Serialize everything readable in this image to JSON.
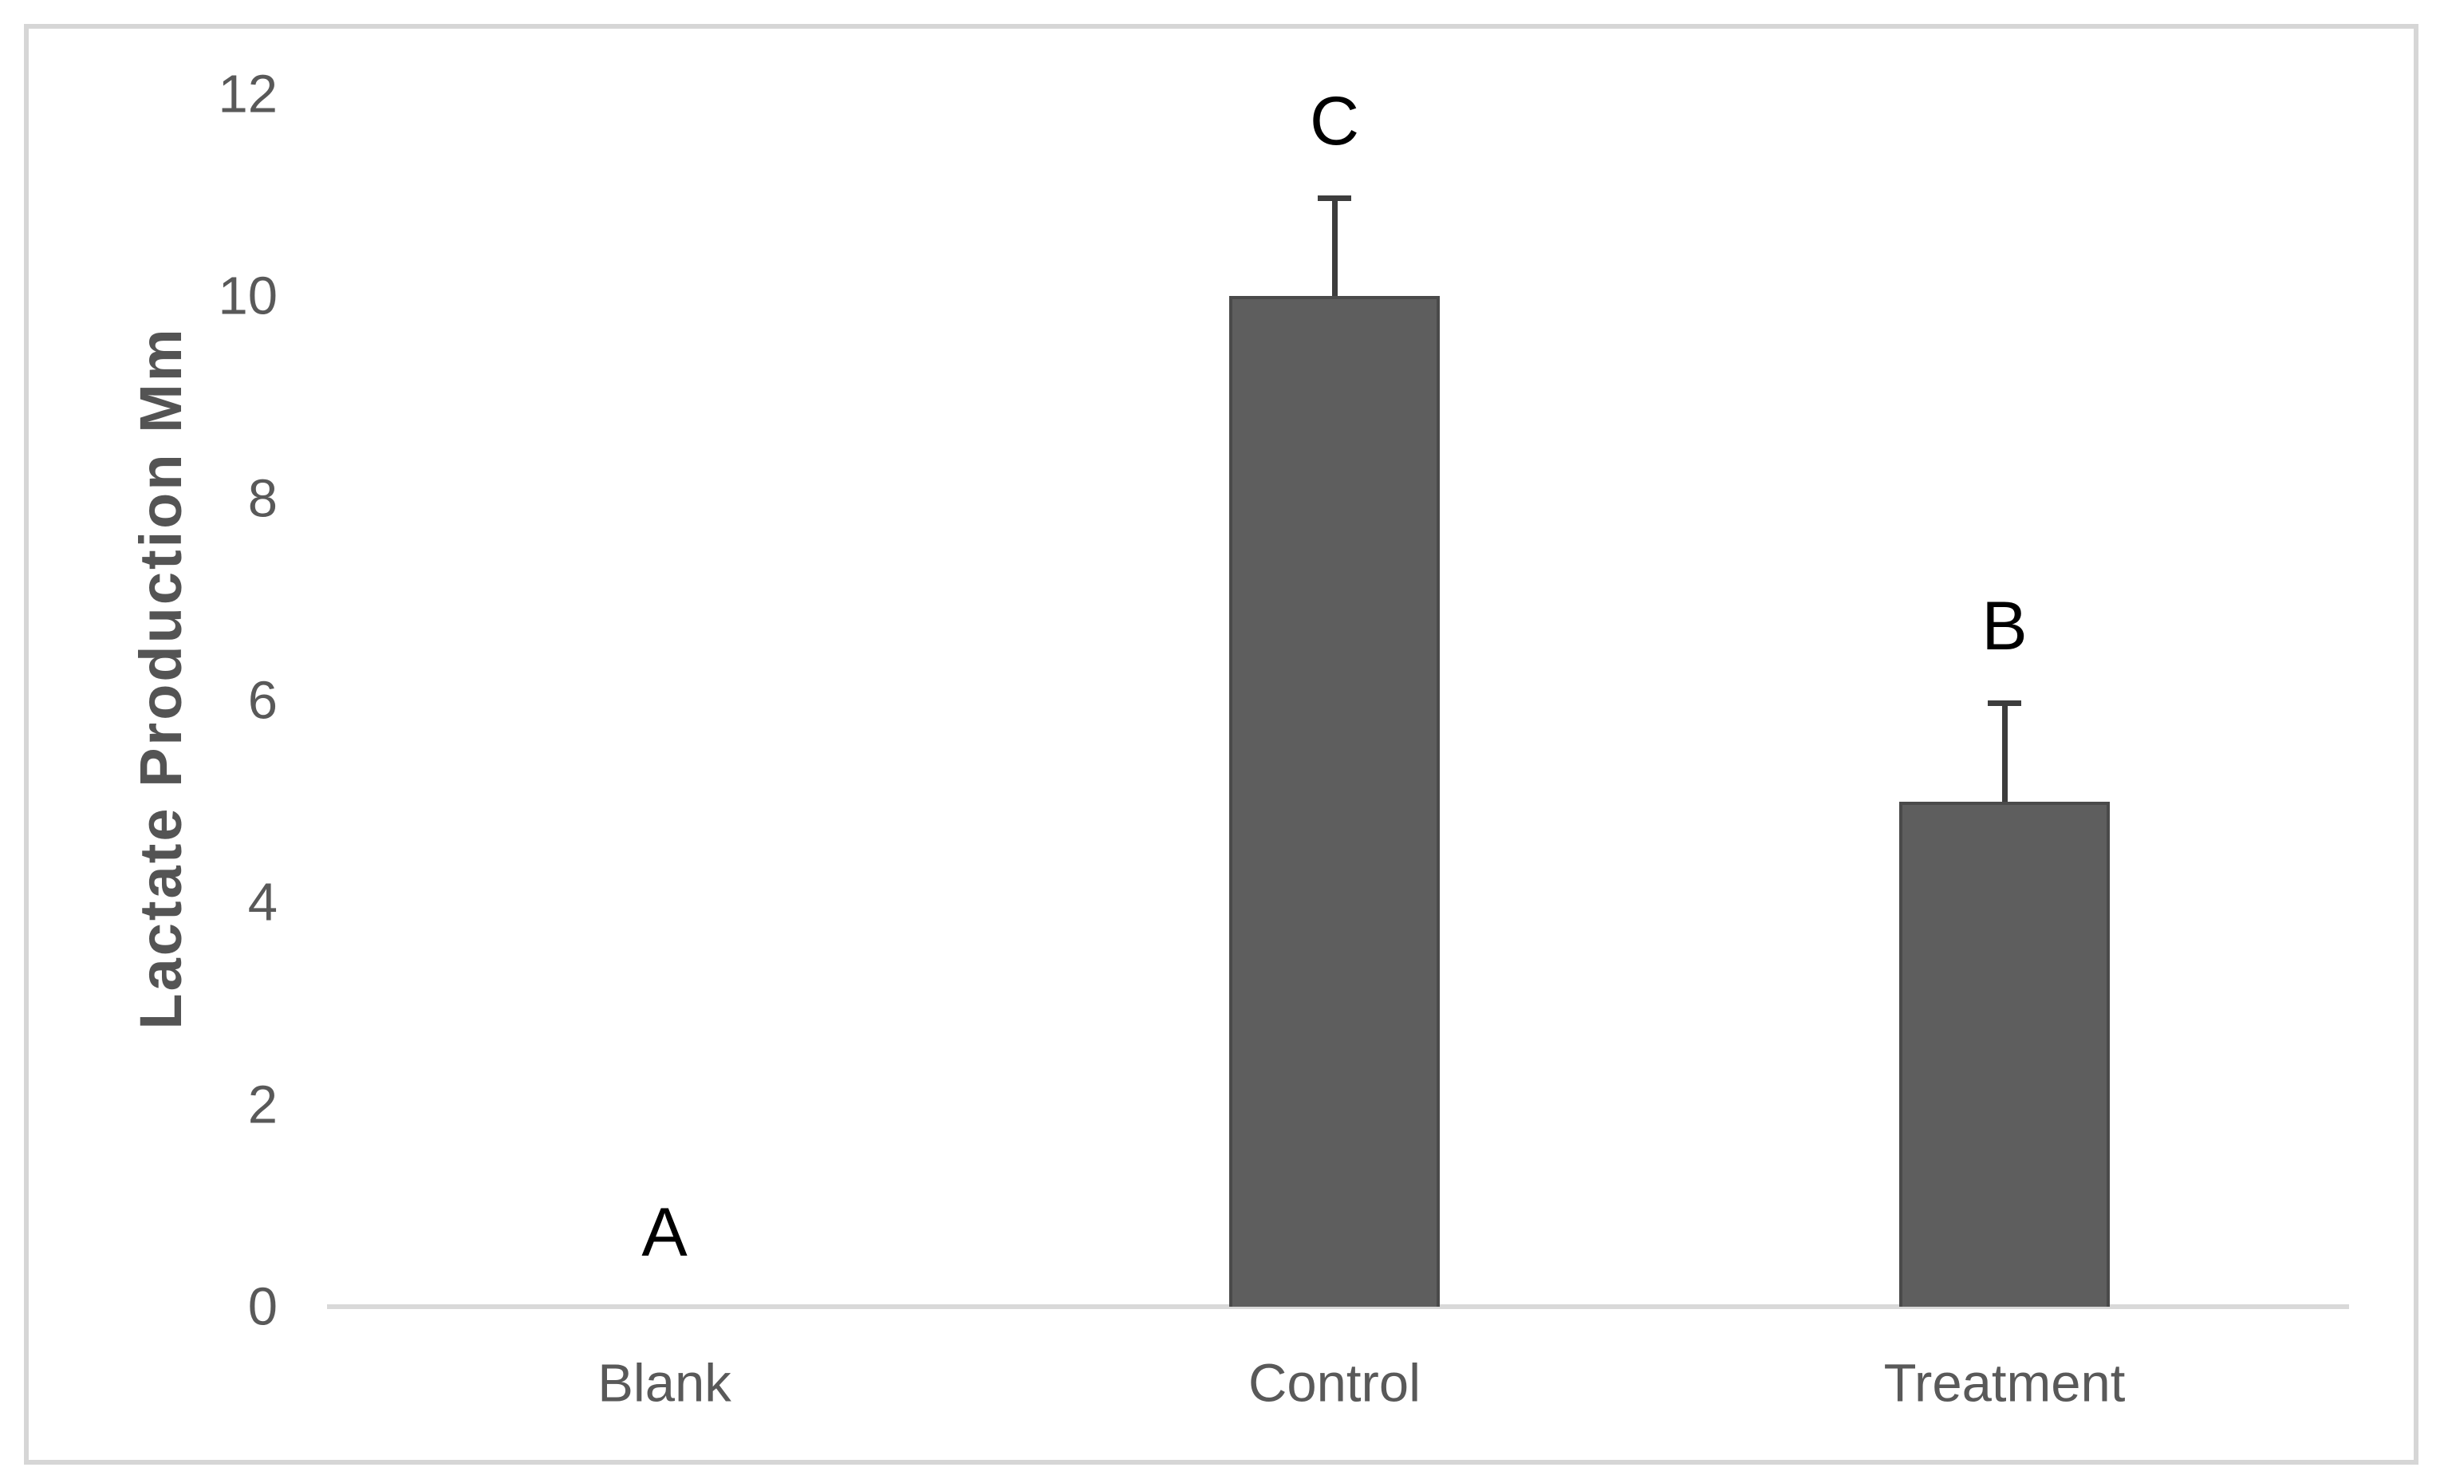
{
  "chart_data": {
    "type": "bar",
    "categories": [
      "Blank",
      "Control",
      "Treatment"
    ],
    "values": [
      0,
      10,
      5
    ],
    "error_plus": [
      0,
      1,
      1
    ],
    "bar_labels": [
      "A",
      "C",
      "B"
    ],
    "ylabel": "Lactate Production Mm",
    "xlabel": "",
    "yticks": [
      0,
      2,
      4,
      6,
      8,
      10,
      12
    ],
    "ylim": [
      0,
      12
    ],
    "grid": "off",
    "legend": "none",
    "colors": {
      "bar_fill": "#5E5E5E",
      "bar_border": "#4A4A4A",
      "error_bar": "#3D3D3D",
      "axis_line": "#D9D9D9",
      "tick_text": "#595959",
      "category_text": "#595959",
      "axis_title_text": "#545454",
      "bar_label_text": "#000000",
      "frame_border": "#D6D6D6",
      "background": "#FFFFFF"
    }
  }
}
